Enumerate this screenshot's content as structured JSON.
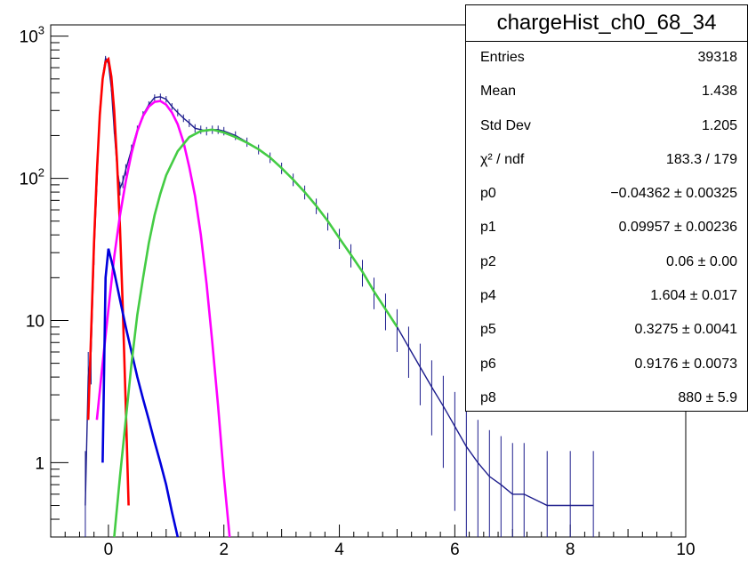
{
  "chart_data": {
    "type": "histogram",
    "xlim": [
      -1,
      10
    ],
    "ylim": [
      0.3,
      1200
    ],
    "y_scale": "log",
    "x_ticks": [
      "0",
      "2",
      "4",
      "6",
      "8",
      "10"
    ],
    "y_ticks": [
      {
        "value": 1000,
        "base": "10",
        "exp": "3"
      },
      {
        "value": 100,
        "base": "10",
        "exp": "2"
      },
      {
        "value": 10,
        "base": "10",
        "exp": ""
      },
      {
        "value": 1,
        "base": "1",
        "exp": ""
      }
    ],
    "grid": false,
    "legend": "none",
    "histogram": {
      "color": "#1c1c8c",
      "points": [
        [
          -0.4,
          0.5
        ],
        [
          -0.35,
          4
        ],
        [
          -0.3,
          6
        ],
        [
          -0.25,
          30
        ],
        [
          -0.2,
          90
        ],
        [
          -0.15,
          300
        ],
        [
          -0.1,
          520
        ],
        [
          -0.05,
          700
        ],
        [
          0.0,
          640
        ],
        [
          0.05,
          430
        ],
        [
          0.1,
          220
        ],
        [
          0.15,
          120
        ],
        [
          0.2,
          85
        ],
        [
          0.25,
          95
        ],
        [
          0.3,
          115
        ],
        [
          0.4,
          160
        ],
        [
          0.5,
          220
        ],
        [
          0.6,
          280
        ],
        [
          0.7,
          330
        ],
        [
          0.8,
          370
        ],
        [
          0.9,
          375
        ],
        [
          1.0,
          360
        ],
        [
          1.1,
          320
        ],
        [
          1.2,
          290
        ],
        [
          1.3,
          265
        ],
        [
          1.4,
          245
        ],
        [
          1.5,
          225
        ],
        [
          1.6,
          220
        ],
        [
          1.7,
          215
        ],
        [
          1.8,
          220
        ],
        [
          1.9,
          220
        ],
        [
          2.0,
          215
        ],
        [
          2.2,
          200
        ],
        [
          2.4,
          180
        ],
        [
          2.6,
          160
        ],
        [
          2.8,
          140
        ],
        [
          3.0,
          118
        ],
        [
          3.2,
          98
        ],
        [
          3.4,
          80
        ],
        [
          3.6,
          64
        ],
        [
          3.8,
          50
        ],
        [
          4.0,
          38
        ],
        [
          4.2,
          29
        ],
        [
          4.4,
          22
        ],
        [
          4.6,
          16
        ],
        [
          4.8,
          12
        ],
        [
          5.0,
          9
        ],
        [
          5.2,
          6.5
        ],
        [
          5.4,
          4.7
        ],
        [
          5.6,
          3.4
        ],
        [
          5.8,
          2.5
        ],
        [
          6.0,
          1.8
        ],
        [
          6.2,
          1.3
        ],
        [
          6.4,
          1.0
        ],
        [
          6.6,
          0.8
        ],
        [
          6.8,
          0.7
        ],
        [
          7.0,
          0.6
        ],
        [
          7.2,
          0.6
        ],
        [
          7.6,
          0.5
        ],
        [
          8.0,
          0.5
        ],
        [
          8.4,
          0.5
        ]
      ]
    },
    "series": [
      {
        "color": "#ff0000",
        "points": [
          [
            -0.35,
            2
          ],
          [
            -0.3,
            8
          ],
          [
            -0.25,
            35
          ],
          [
            -0.2,
            110
          ],
          [
            -0.15,
            280
          ],
          [
            -0.1,
            500
          ],
          [
            -0.05,
            660
          ],
          [
            0.0,
            690
          ],
          [
            0.05,
            520
          ],
          [
            0.1,
            300
          ],
          [
            0.15,
            130
          ],
          [
            0.2,
            45
          ],
          [
            0.25,
            12
          ],
          [
            0.3,
            2.5
          ],
          [
            0.35,
            0.5
          ]
        ]
      },
      {
        "color": "#ff00ff",
        "points": [
          [
            -0.2,
            2
          ],
          [
            -0.1,
            5
          ],
          [
            0.0,
            12
          ],
          [
            0.1,
            28
          ],
          [
            0.2,
            55
          ],
          [
            0.3,
            95
          ],
          [
            0.4,
            150
          ],
          [
            0.5,
            215
          ],
          [
            0.6,
            275
          ],
          [
            0.7,
            320
          ],
          [
            0.8,
            345
          ],
          [
            0.9,
            350
          ],
          [
            1.0,
            330
          ],
          [
            1.1,
            290
          ],
          [
            1.2,
            240
          ],
          [
            1.3,
            180
          ],
          [
            1.4,
            120
          ],
          [
            1.5,
            75
          ],
          [
            1.6,
            40
          ],
          [
            1.7,
            18
          ],
          [
            1.8,
            7
          ],
          [
            1.9,
            2.5
          ],
          [
            2.0,
            0.8
          ],
          [
            2.1,
            0.3
          ]
        ]
      },
      {
        "color": "#0000dd",
        "points": [
          [
            -0.1,
            1
          ],
          [
            -0.05,
            20
          ],
          [
            0.0,
            32
          ],
          [
            0.1,
            22
          ],
          [
            0.2,
            14
          ],
          [
            0.3,
            9
          ],
          [
            0.4,
            6
          ],
          [
            0.5,
            4
          ],
          [
            0.6,
            2.8
          ],
          [
            0.7,
            2.0
          ],
          [
            0.8,
            1.4
          ],
          [
            0.9,
            1.0
          ],
          [
            1.0,
            0.7
          ],
          [
            1.1,
            0.45
          ],
          [
            1.2,
            0.3
          ]
        ]
      },
      {
        "color": "#44cc44",
        "points": [
          [
            0.1,
            0.3
          ],
          [
            0.2,
            0.8
          ],
          [
            0.3,
            2
          ],
          [
            0.4,
            5
          ],
          [
            0.5,
            11
          ],
          [
            0.6,
            20
          ],
          [
            0.7,
            35
          ],
          [
            0.8,
            55
          ],
          [
            0.9,
            78
          ],
          [
            1.0,
            105
          ],
          [
            1.2,
            155
          ],
          [
            1.4,
            195
          ],
          [
            1.6,
            215
          ],
          [
            1.8,
            220
          ],
          [
            2.0,
            210
          ],
          [
            2.2,
            195
          ],
          [
            2.4,
            178
          ],
          [
            2.6,
            160
          ],
          [
            2.8,
            140
          ],
          [
            3.0,
            118
          ],
          [
            3.2,
            98
          ],
          [
            3.4,
            80
          ],
          [
            3.6,
            64
          ],
          [
            3.8,
            50
          ],
          [
            4.0,
            38
          ],
          [
            4.2,
            29
          ],
          [
            4.4,
            22
          ],
          [
            4.6,
            16
          ],
          [
            4.8,
            12
          ],
          [
            5.0,
            9
          ]
        ]
      }
    ]
  },
  "stats_box": {
    "title": "chargeHist_ch0_68_34",
    "rows": [
      {
        "label": "Entries",
        "value": "39318"
      },
      {
        "label": "Mean",
        "value": "1.438"
      },
      {
        "label": "Std Dev",
        "value": "1.205"
      },
      {
        "label": "χ² / ndf",
        "value": "183.3 / 179"
      },
      {
        "label": "p0",
        "value": "−0.04362 ± 0.00325"
      },
      {
        "label": "p1",
        "value": "0.09957 ± 0.00236"
      },
      {
        "label": "p2",
        "value": "0.06 ± 0.00"
      },
      {
        "label": "p4",
        "value": "1.604 ± 0.017"
      },
      {
        "label": "p5",
        "value": "0.3275 ± 0.0041"
      },
      {
        "label": "p6",
        "value": "0.9176 ± 0.0073"
      },
      {
        "label": "p8",
        "value": "880 ± 5.9"
      }
    ]
  }
}
